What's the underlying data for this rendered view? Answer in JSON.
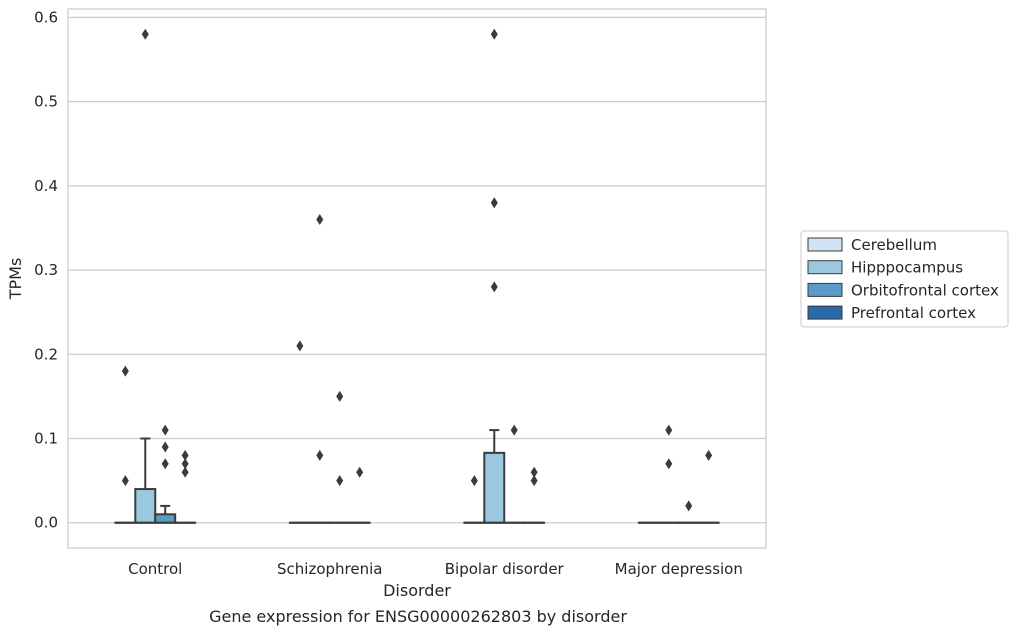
{
  "chart_data": {
    "type": "box",
    "title": "",
    "caption": "Gene expression for ENSG00000262803 by disorder",
    "xlabel": "Disorder",
    "ylabel": "TPMs",
    "categories": [
      "Control",
      "Schizophrenia",
      "Bipolar disorder",
      "Major depression"
    ],
    "ylim": [
      -0.03,
      0.61
    ],
    "yticks": [
      0.0,
      0.1,
      0.2,
      0.3,
      0.4,
      0.5,
      0.6
    ],
    "ytick_labels": [
      "0.0",
      "0.1",
      "0.2",
      "0.3",
      "0.4",
      "0.5",
      "0.6"
    ],
    "grid": "horizontal",
    "legend_position": "right",
    "series": [
      {
        "name": "Cerebellum",
        "color": "#d1e2f2",
        "boxes": [
          {
            "q1": 0,
            "median": 0,
            "q3": 0,
            "whisker_low": 0,
            "whisker_high": 0,
            "outliers": [
              0.05,
              0.18
            ]
          },
          {
            "q1": 0,
            "median": 0,
            "q3": 0,
            "whisker_low": 0,
            "whisker_high": 0,
            "outliers": [
              0.21
            ]
          },
          {
            "q1": 0,
            "median": 0,
            "q3": 0,
            "whisker_low": 0,
            "whisker_high": 0,
            "outliers": [
              0.05
            ]
          },
          {
            "q1": 0,
            "median": 0,
            "q3": 0,
            "whisker_low": 0,
            "whisker_high": 0,
            "outliers": []
          }
        ]
      },
      {
        "name": "Hipppocampus",
        "color": "#9ac8e0",
        "boxes": [
          {
            "q1": 0,
            "median": 0,
            "q3": 0.04,
            "whisker_low": 0,
            "whisker_high": 0.1,
            "outliers": [
              0.58
            ]
          },
          {
            "q1": 0,
            "median": 0,
            "q3": 0,
            "whisker_low": 0,
            "whisker_high": 0,
            "outliers": [
              0.36,
              0.08
            ]
          },
          {
            "q1": 0,
            "median": 0,
            "q3": 0.083,
            "whisker_low": 0,
            "whisker_high": 0.11,
            "outliers": [
              0.58,
              0.38,
              0.28
            ]
          },
          {
            "q1": 0,
            "median": 0,
            "q3": 0,
            "whisker_low": 0,
            "whisker_high": 0,
            "outliers": [
              0.11,
              0.07
            ]
          }
        ]
      },
      {
        "name": "Orbitofrontal cortex",
        "color": "#5a9cc8",
        "boxes": [
          {
            "q1": 0,
            "median": 0,
            "q3": 0.01,
            "whisker_low": 0,
            "whisker_high": 0.02,
            "outliers": [
              0.11,
              0.09,
              0.07
            ]
          },
          {
            "q1": 0,
            "median": 0,
            "q3": 0,
            "whisker_low": 0,
            "whisker_high": 0,
            "outliers": [
              0.15,
              0.05
            ]
          },
          {
            "q1": 0,
            "median": 0,
            "q3": 0,
            "whisker_low": 0,
            "whisker_high": 0,
            "outliers": [
              0.11
            ]
          },
          {
            "q1": 0,
            "median": 0,
            "q3": 0,
            "whisker_low": 0,
            "whisker_high": 0,
            "outliers": [
              0.02
            ]
          }
        ]
      },
      {
        "name": "Prefrontal cortex",
        "color": "#2a6aa8",
        "boxes": [
          {
            "q1": 0,
            "median": 0,
            "q3": 0,
            "whisker_low": 0,
            "whisker_high": 0,
            "outliers": [
              0.08,
              0.07,
              0.06
            ]
          },
          {
            "q1": 0,
            "median": 0,
            "q3": 0,
            "whisker_low": 0,
            "whisker_high": 0,
            "outliers": [
              0.06
            ]
          },
          {
            "q1": 0,
            "median": 0,
            "q3": 0,
            "whisker_low": 0,
            "whisker_high": 0,
            "outliers": [
              0.06,
              0.05
            ]
          },
          {
            "q1": 0,
            "median": 0,
            "q3": 0,
            "whisker_low": 0,
            "whisker_high": 0,
            "outliers": [
              0.08
            ]
          }
        ]
      }
    ]
  }
}
